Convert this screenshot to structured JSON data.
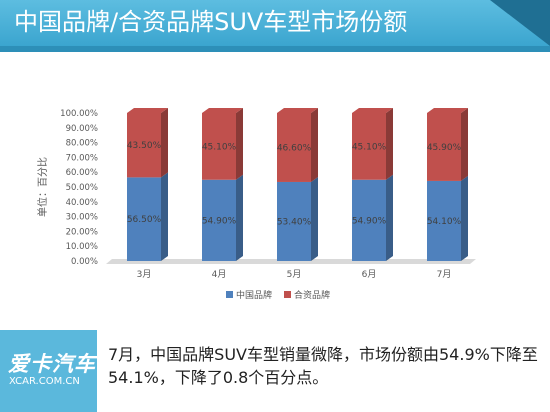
{
  "header": {
    "title": "中国品牌/合资品牌SUV车型市场份额"
  },
  "chart_data": {
    "type": "bar",
    "stacked": true,
    "categories": [
      "3月",
      "4月",
      "5月",
      "6月",
      "7月"
    ],
    "series": [
      {
        "name": "中国品牌",
        "values": [
          56.5,
          54.9,
          53.4,
          54.9,
          54.1
        ],
        "labels": [
          "56.50%",
          "54.90%",
          "53.40%",
          "54.90%",
          "54.10%"
        ],
        "color": "#4f81bd"
      },
      {
        "name": "合资品牌",
        "values": [
          43.5,
          45.1,
          46.6,
          45.1,
          45.9
        ],
        "labels": [
          "43.50%",
          "45.10%",
          "46.60%",
          "45.10%",
          "45.90%"
        ],
        "color": "#c0504d"
      }
    ],
    "ylabel": "单位：百分比",
    "ylim": [
      0,
      100
    ],
    "yticks": [
      "0.00%",
      "10.00%",
      "20.00%",
      "30.00%",
      "40.00%",
      "50.00%",
      "60.00%",
      "70.00%",
      "80.00%",
      "90.00%",
      "100.00%"
    ],
    "legend_position": "bottom",
    "grid": false
  },
  "footer": {
    "logo_text": "爱卡汽车",
    "logo_sub": "XCAR.COM.CN",
    "text": "7月，中国品牌SUV车型销量微降，市场份额由54.9%下降至54.1%，下降了0.8个百分点。"
  }
}
